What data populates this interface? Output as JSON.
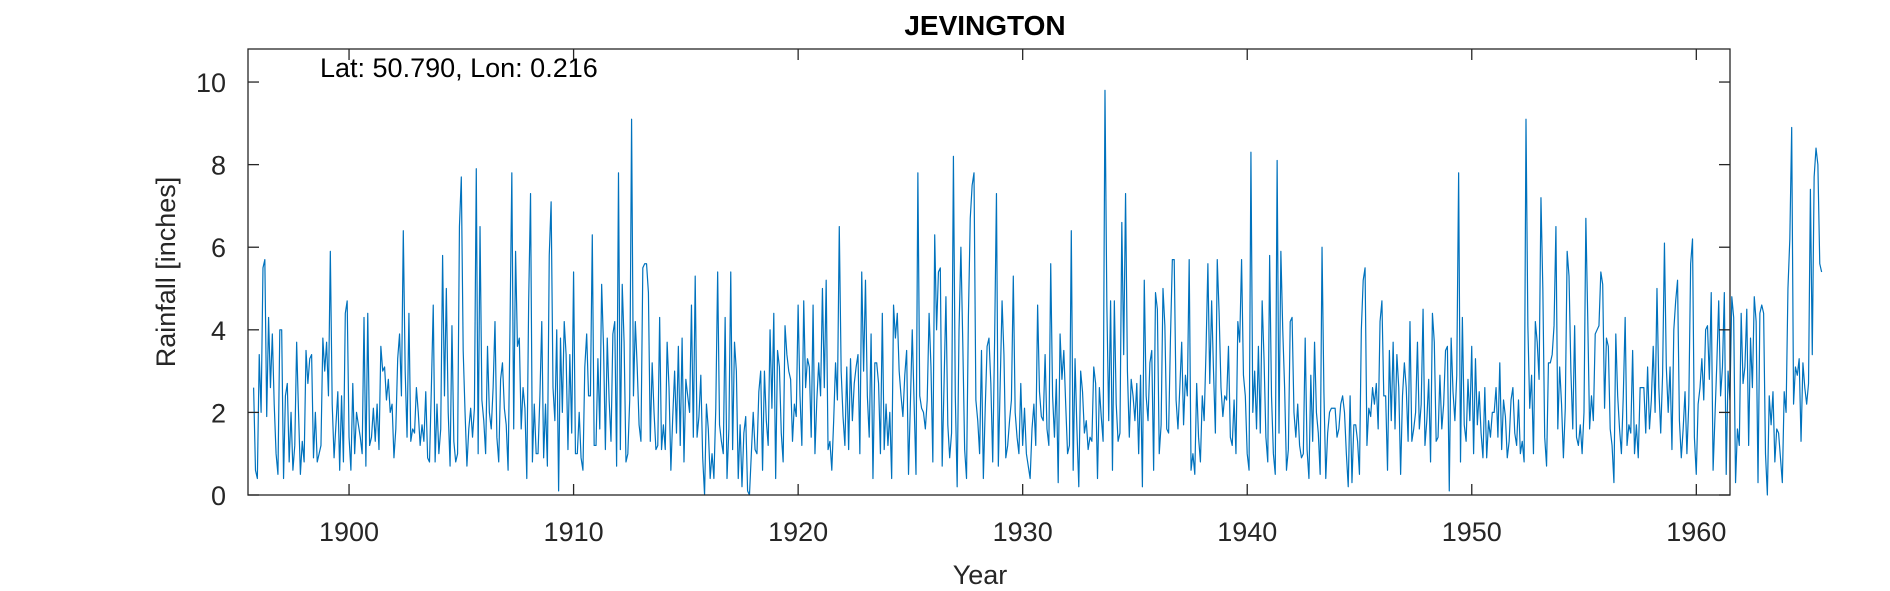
{
  "chart_data": {
    "type": "line",
    "title": "JEVINGTON",
    "annotation": "Lat: 50.790, Lon: 0.216",
    "xlabel": "Year",
    "ylabel": "Rainfall [inches]",
    "xlim": [
      1895.5,
      1961.5
    ],
    "ylim": [
      0,
      10.8
    ],
    "xticks": [
      1900,
      1910,
      1920,
      1930,
      1940,
      1950,
      1960
    ],
    "yticks": [
      0,
      2,
      4,
      6,
      8,
      10
    ],
    "grid": false,
    "line_color": "#0072BD",
    "series": [
      {
        "x_start": 1895.75,
        "x_step": 0.08333,
        "values": [
          2.6,
          0.6,
          0.4,
          3.4,
          2.0,
          5.5,
          5.7,
          1.9,
          4.3,
          2.6,
          3.9,
          2.2,
          1.0,
          0.5,
          4.0,
          4.0,
          0.4,
          2.4,
          2.7,
          0.8,
          2.0,
          0.6,
          1.2,
          3.7,
          2.0,
          0.5,
          1.3,
          0.8,
          3.5,
          2.7,
          3.3,
          3.4,
          0.9,
          2.0,
          0.8,
          1.0,
          1.2,
          3.8,
          3.0,
          3.7,
          2.4,
          5.9,
          2.2,
          0.9,
          1.7,
          2.5,
          0.6,
          2.4,
          0.8,
          4.4,
          4.7,
          1.4,
          0.6,
          2.7,
          1.0,
          2.0,
          1.7,
          1.4,
          1.0,
          4.3,
          0.7,
          4.4,
          1.2,
          1.4,
          2.1,
          1.3,
          2.2,
          1.1,
          3.6,
          3.0,
          3.1,
          2.3,
          2.8,
          2.0,
          2.2,
          0.9,
          1.6,
          3.3,
          3.9,
          2.4,
          6.4,
          3.0,
          1.4,
          4.4,
          1.3,
          1.6,
          1.5,
          2.6,
          2.0,
          1.2,
          1.7,
          1.3,
          2.5,
          0.9,
          0.8,
          2.6,
          4.6,
          0.8,
          2.2,
          1.0,
          1.6,
          5.8,
          2.4,
          5.0,
          2.0,
          0.7,
          4.1,
          1.3,
          0.8,
          1.0,
          6.5,
          7.7,
          3.5,
          2.0,
          0.7,
          1.6,
          2.1,
          1.4,
          2.1,
          7.9,
          1.0,
          6.5,
          2.3,
          1.8,
          1.0,
          3.6,
          2.0,
          1.6,
          2.6,
          4.2,
          1.4,
          0.8,
          2.8,
          3.2,
          2.1,
          1.7,
          0.6,
          4.0,
          7.8,
          1.6,
          5.9,
          3.6,
          3.8,
          1.6,
          2.6,
          2.1,
          0.4,
          4.7,
          7.3,
          0.8,
          2.2,
          1.0,
          1.0,
          2.4,
          4.2,
          0.9,
          2.2,
          0.7,
          5.8,
          7.1,
          2.6,
          1.8,
          4.0,
          0.1,
          3.8,
          2.0,
          4.2,
          3.4,
          1.1,
          3.4,
          1.5,
          5.4,
          1.0,
          1.0,
          2.0,
          0.9,
          0.6,
          3.1,
          3.9,
          2.4,
          2.4,
          6.3,
          1.2,
          1.2,
          3.3,
          1.6,
          5.1,
          3.6,
          1.1,
          3.8,
          2.3,
          1.3,
          3.9,
          4.2,
          0.7,
          7.8,
          1.1,
          5.1,
          3.7,
          0.8,
          1.0,
          2.3,
          9.1,
          2.4,
          4.2,
          3.1,
          1.7,
          1.3,
          5.5,
          5.6,
          5.6,
          4.9,
          1.3,
          3.2,
          2.0,
          1.1,
          1.2,
          4.3,
          1.1,
          1.7,
          1.1,
          3.7,
          2.6,
          0.6,
          1.9,
          3.0,
          1.5,
          3.6,
          1.2,
          3.8,
          0.8,
          2.8,
          2.4,
          2.0,
          4.6,
          1.4,
          5.3,
          1.4,
          1.9,
          2.9,
          0.9,
          0.0,
          2.2,
          1.6,
          0.4,
          1.0,
          0.4,
          2.1,
          5.4,
          1.7,
          1.3,
          1.0,
          4.3,
          0.4,
          1.6,
          5.4,
          1.1,
          3.7,
          3.0,
          0.4,
          1.7,
          0.2,
          1.5,
          1.9,
          0.1,
          0.0,
          1.0,
          2.0,
          1.1,
          1.0,
          2.5,
          3.0,
          0.6,
          3.0,
          1.8,
          1.2,
          4.0,
          2.1,
          4.4,
          0.4,
          3.5,
          3.1,
          1.5,
          0.8,
          4.1,
          3.4,
          3.0,
          2.8,
          1.3,
          2.2,
          1.9,
          4.6,
          2.4,
          1.2,
          4.7,
          2.6,
          3.3,
          3.1,
          1.4,
          4.6,
          1.0,
          2.3,
          3.2,
          2.4,
          5.0,
          2.6,
          5.2,
          1.1,
          1.3,
          0.6,
          1.8,
          3.2,
          2.3,
          6.5,
          3.0,
          1.9,
          1.2,
          3.1,
          1.1,
          3.3,
          1.8,
          2.7,
          3.1,
          3.4,
          1.0,
          5.4,
          3.0,
          5.2,
          2.4,
          1.4,
          3.9,
          0.4,
          3.2,
          3.2,
          2.7,
          1.0,
          4.4,
          1.1,
          2.2,
          1.2,
          2.0,
          0.4,
          4.6,
          3.8,
          4.4,
          3.0,
          2.4,
          1.9,
          2.9,
          3.5,
          0.5,
          2.2,
          4.0,
          2.2,
          0.5,
          7.8,
          2.4,
          2.1,
          2.0,
          1.6,
          2.3,
          4.4,
          3.1,
          0.8,
          6.3,
          4.0,
          5.4,
          5.5,
          0.7,
          2.7,
          4.8,
          1.7,
          0.9,
          1.5,
          8.2,
          2.4,
          0.2,
          4.0,
          6.0,
          3.7,
          1.1,
          0.4,
          4.3,
          6.7,
          7.5,
          7.8,
          2.3,
          1.8,
          1.0,
          3.5,
          0.4,
          2.1,
          3.6,
          3.8,
          2.7,
          0.8,
          3.7,
          7.3,
          0.7,
          2.7,
          4.7,
          3.4,
          0.9,
          1.2,
          1.8,
          2.3,
          5.3,
          2.0,
          1.4,
          1.0,
          2.7,
          1.2,
          2.1,
          1.0,
          0.7,
          0.4,
          1.6,
          2.2,
          1.2,
          4.6,
          2.5,
          1.9,
          1.8,
          3.4,
          1.6,
          1.2,
          5.6,
          2.4,
          1.4,
          2.8,
          0.3,
          3.9,
          2.8,
          3.5,
          2.2,
          1.0,
          1.2,
          6.4,
          0.6,
          3.3,
          1.6,
          0.2,
          3.0,
          2.5,
          1.5,
          1.8,
          1.1,
          1.4,
          1.3,
          3.1,
          2.7,
          0.4,
          2.6,
          1.9,
          1.3,
          9.8,
          4.6,
          1.8,
          4.7,
          0.6,
          4.7,
          2.2,
          1.3,
          1.5,
          6.6,
          3.4,
          7.3,
          3.0,
          1.4,
          2.8,
          2.4,
          1.8,
          2.7,
          1.0,
          2.9,
          0.2,
          5.2,
          2.4,
          1.8,
          3.2,
          3.5,
          0.6,
          4.9,
          4.5,
          1.0,
          1.7,
          5.0,
          4.1,
          1.6,
          1.5,
          3.8,
          5.7,
          5.7,
          2.3,
          1.6,
          2.6,
          3.7,
          1.7,
          2.9,
          2.4,
          5.7,
          0.6,
          1.0,
          0.5,
          2.7,
          1.4,
          0.8,
          2.4,
          1.8,
          3.5,
          5.6,
          2.7,
          4.7,
          3.0,
          1.5,
          5.7,
          4.4,
          2.6,
          1.9,
          2.4,
          2.3,
          3.6,
          1.4,
          1.2,
          2.3,
          1.0,
          4.2,
          3.7,
          5.7,
          2.9,
          2.4,
          1.0,
          0.6,
          8.3,
          2.0,
          3.0,
          1.6,
          3.6,
          1.5,
          4.7,
          3.3,
          1.4,
          0.8,
          5.8,
          2.4,
          1.0,
          0.5,
          8.1,
          1.5,
          5.9,
          4.0,
          2.6,
          0.6,
          1.1,
          4.2,
          4.3,
          2.0,
          1.4,
          2.2,
          1.2,
          0.9,
          1.0,
          3.8,
          1.1,
          0.4,
          2.9,
          1.3,
          3.7,
          2.0,
          1.5,
          0.5,
          6.0,
          2.5,
          0.4,
          1.5,
          2.0,
          2.1,
          2.1,
          2.1,
          1.4,
          1.6,
          2.2,
          2.4,
          2.0,
          1.0,
          0.2,
          2.4,
          0.3,
          1.7,
          1.7,
          1.3,
          0.5,
          4.0,
          5.2,
          5.5,
          1.2,
          2.1,
          1.9,
          2.6,
          2.2,
          2.7,
          1.6,
          4.2,
          4.7,
          2.4,
          2.4,
          0.6,
          3.5,
          1.8,
          3.7,
          1.6,
          3.4,
          2.6,
          0.5,
          2.4,
          3.2,
          2.6,
          1.3,
          4.2,
          1.3,
          1.6,
          2.0,
          3.7,
          1.6,
          2.2,
          4.5,
          1.2,
          1.8,
          2.8,
          0.8,
          4.4,
          3.7,
          1.3,
          1.4,
          2.9,
          1.6,
          2.2,
          3.5,
          3.6,
          0.1,
          3.8,
          2.5,
          1.8,
          2.9,
          7.8,
          0.8,
          4.3,
          1.7,
          1.3,
          2.8,
          1.8,
          3.6,
          1.0,
          3.3,
          1.7,
          2.5,
          1.5,
          0.9,
          2.6,
          0.9,
          1.8,
          1.4,
          2.0,
          2.0,
          2.6,
          1.4,
          3.2,
          1.1,
          2.3,
          1.9,
          0.9,
          1.3,
          2.3,
          2.6,
          1.5,
          1.2,
          2.3,
          1.0,
          1.3,
          0.8,
          9.1,
          4.1,
          2.1,
          2.9,
          1.0,
          4.2,
          3.7,
          2.8,
          7.2,
          5.0,
          1.4,
          0.7,
          3.2,
          3.2,
          3.4,
          4.1,
          6.5,
          1.6,
          3.1,
          2.2,
          0.9,
          2.1,
          5.9,
          5.3,
          3.0,
          1.6,
          4.1,
          1.4,
          1.2,
          1.7,
          1.0,
          2.0,
          6.7,
          4.3,
          1.6,
          2.4,
          1.8,
          3.9,
          4.0,
          4.1,
          5.4,
          5.1,
          2.1,
          3.8,
          3.6,
          1.6,
          1.2,
          0.3,
          3.9,
          2.4,
          1.6,
          1.0,
          2.4,
          4.3,
          1.2,
          1.7,
          1.5,
          3.5,
          1.0,
          1.7,
          0.9,
          2.6,
          2.6,
          2.6,
          1.5,
          3.1,
          1.6,
          2.3,
          3.6,
          2.0,
          5.0,
          2.6,
          1.5,
          2.9,
          6.1,
          3.1,
          2.0,
          3.1,
          1.1,
          4.0,
          4.7,
          5.2,
          1.8,
          0.9,
          1.6,
          2.5,
          1.0,
          2.2,
          5.6,
          6.2,
          1.4,
          0.5,
          2.2,
          2.6,
          3.3,
          2.3,
          4.0,
          4.1,
          2.8,
          4.9,
          0.6,
          1.9,
          3.2,
          4.7,
          2.4,
          3.1,
          4.9,
          0.5,
          3.0,
          2.3,
          4.8,
          4.3,
          0.3,
          1.6,
          1.2,
          4.4,
          2.7,
          3.1,
          4.5,
          1.2,
          3.8,
          2.6,
          4.8,
          4.2,
          0.3,
          4.4,
          4.6,
          4.4,
          1.0,
          0.0,
          2.4,
          1.7,
          2.5,
          0.8,
          1.6,
          1.5,
          0.9,
          0.3,
          2.5,
          2.0,
          5.0,
          6.2,
          8.9,
          2.2,
          3.1,
          2.9,
          3.3,
          1.3,
          3.2,
          2.6,
          2.2,
          2.7,
          7.4,
          3.4,
          7.7,
          8.4,
          8.0,
          5.6,
          5.4
        ]
      }
    ]
  }
}
